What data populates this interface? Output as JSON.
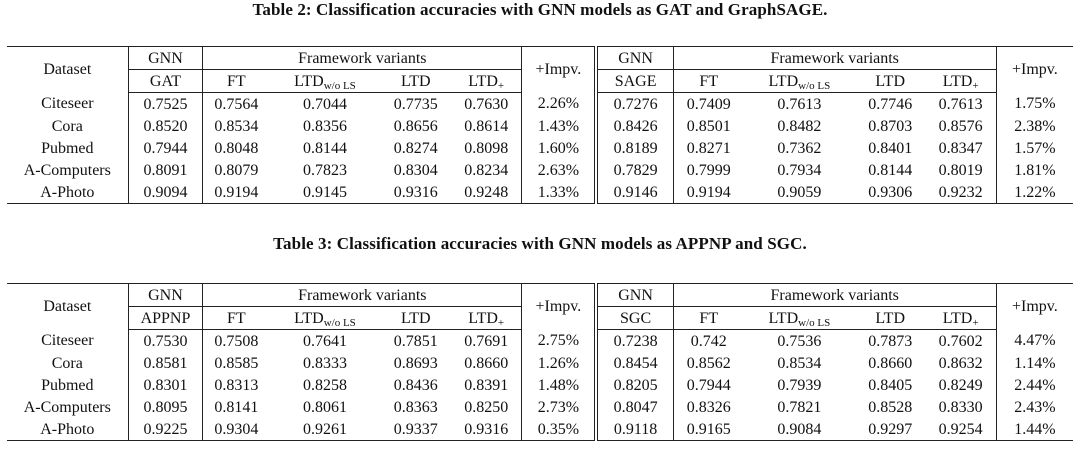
{
  "tables": [
    {
      "caption": "Table 2: Classification accuracies with GNN models as GAT and GraphSAGE.",
      "headers": {
        "dataset": "Dataset",
        "gnn": "GNN",
        "framework": "Framework variants",
        "impv": "+Impv.",
        "left_model": "GAT",
        "right_model": "SAGE",
        "ft": "FT",
        "ltd_wo_main": "LTD",
        "ltd_wo_sub": "w/o LS",
        "ltd": "LTD",
        "ltd_plus_main": "LTD",
        "ltd_plus_sub": "+"
      },
      "rows": [
        {
          "dataset": "Citeseer",
          "left": [
            "0.7525",
            "0.7564",
            "0.7044",
            "0.7735",
            "0.7630",
            "2.26%"
          ],
          "right": [
            "0.7276",
            "0.7409",
            "0.7613",
            "0.7746",
            "0.7613",
            "1.75%"
          ]
        },
        {
          "dataset": "Cora",
          "left": [
            "0.8520",
            "0.8534",
            "0.8356",
            "0.8656",
            "0.8614",
            "1.43%"
          ],
          "right": [
            "0.8426",
            "0.8501",
            "0.8482",
            "0.8703",
            "0.8576",
            "2.38%"
          ]
        },
        {
          "dataset": "Pubmed",
          "left": [
            "0.7944",
            "0.8048",
            "0.8144",
            "0.8274",
            "0.8098",
            "1.60%"
          ],
          "right": [
            "0.8189",
            "0.8271",
            "0.7362",
            "0.8401",
            "0.8347",
            "1.57%"
          ]
        },
        {
          "dataset": "A-Computers",
          "left": [
            "0.8091",
            "0.8079",
            "0.7823",
            "0.8304",
            "0.8234",
            "2.63%"
          ],
          "right": [
            "0.7829",
            "0.7999",
            "0.7934",
            "0.8144",
            "0.8019",
            "1.81%"
          ]
        },
        {
          "dataset": "A-Photo",
          "left": [
            "0.9094",
            "0.9194",
            "0.9145",
            "0.9316",
            "0.9248",
            "1.33%"
          ],
          "right": [
            "0.9146",
            "0.9194",
            "0.9059",
            "0.9306",
            "0.9232",
            "1.22%"
          ]
        }
      ]
    },
    {
      "caption": "Table 3: Classification accuracies with GNN models as APPNP and SGC.",
      "headers": {
        "dataset": "Dataset",
        "gnn": "GNN",
        "framework": "Framework variants",
        "impv": "+Impv.",
        "left_model": "APPNP",
        "right_model": "SGC",
        "ft": "FT",
        "ltd_wo_main": "LTD",
        "ltd_wo_sub": "w/o LS",
        "ltd": "LTD",
        "ltd_plus_main": "LTD",
        "ltd_plus_sub": "+"
      },
      "rows": [
        {
          "dataset": "Citeseer",
          "left": [
            "0.7530",
            "0.7508",
            "0.7641",
            "0.7851",
            "0.7691",
            "2.75%"
          ],
          "right": [
            "0.7238",
            "0.742",
            "0.7536",
            "0.7873",
            "0.7602",
            "4.47%"
          ]
        },
        {
          "dataset": "Cora",
          "left": [
            "0.8581",
            "0.8585",
            "0.8333",
            "0.8693",
            "0.8660",
            "1.26%"
          ],
          "right": [
            "0.8454",
            "0.8562",
            "0.8534",
            "0.8660",
            "0.8632",
            "1.14%"
          ]
        },
        {
          "dataset": "Pubmed",
          "left": [
            "0.8301",
            "0.8313",
            "0.8258",
            "0.8436",
            "0.8391",
            "1.48%"
          ],
          "right": [
            "0.8205",
            "0.7944",
            "0.7939",
            "0.8405",
            "0.8249",
            "2.44%"
          ]
        },
        {
          "dataset": "A-Computers",
          "left": [
            "0.8095",
            "0.8141",
            "0.8061",
            "0.8363",
            "0.8250",
            "2.73%"
          ],
          "right": [
            "0.8047",
            "0.8326",
            "0.7821",
            "0.8528",
            "0.8330",
            "2.43%"
          ]
        },
        {
          "dataset": "A-Photo",
          "left": [
            "0.9225",
            "0.9304",
            "0.9261",
            "0.9337",
            "0.9316",
            "0.35%"
          ],
          "right": [
            "0.9118",
            "0.9165",
            "0.9084",
            "0.9297",
            "0.9254",
            "1.44%"
          ]
        }
      ]
    }
  ]
}
